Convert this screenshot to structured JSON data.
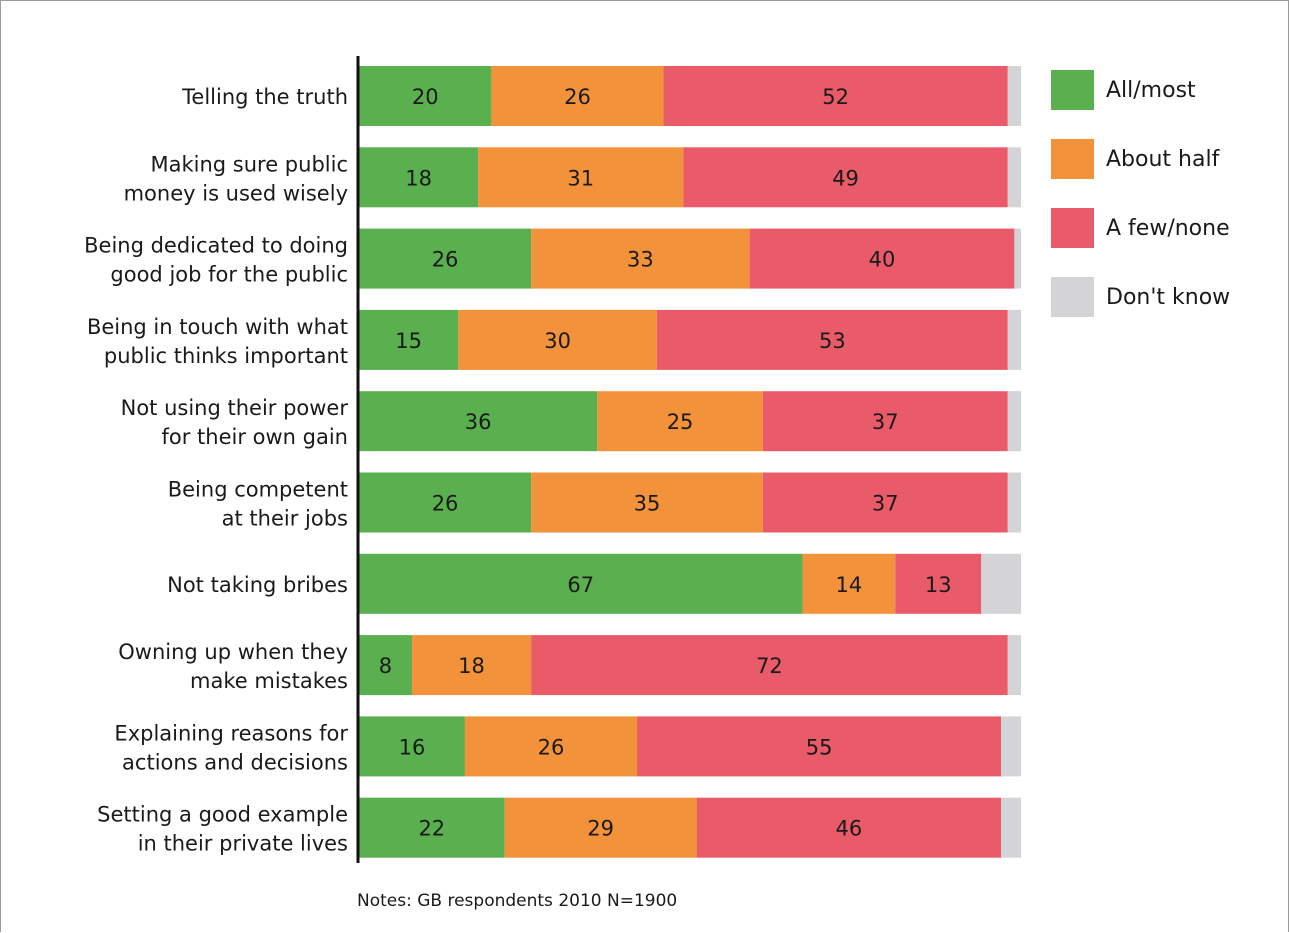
{
  "chart_data": {
    "type": "bar",
    "orientation": "horizontal",
    "stacked": true,
    "categories": [
      [
        "Telling the truth"
      ],
      [
        "Making sure public",
        "money is used wisely"
      ],
      [
        "Being dedicated to doing",
        "good job for the public"
      ],
      [
        "Being in touch with what",
        "public thinks important"
      ],
      [
        "Not using their power",
        "for their own gain"
      ],
      [
        "Being competent",
        "at their jobs"
      ],
      [
        "Not taking bribes"
      ],
      [
        "Owning up when they",
        "make mistakes"
      ],
      [
        "Explaining reasons for",
        "actions and decisions"
      ],
      [
        "Setting a good example",
        "in their private lives"
      ]
    ],
    "series": [
      {
        "name": "All/most",
        "color": "#5aaf4e",
        "values": [
          20,
          18,
          26,
          15,
          36,
          26,
          67,
          8,
          16,
          22
        ]
      },
      {
        "name": "About half",
        "color": "#f2923a",
        "values": [
          26,
          31,
          33,
          30,
          25,
          35,
          14,
          18,
          26,
          29
        ]
      },
      {
        "name": "A few/none",
        "color": "#e95b69",
        "values": [
          52,
          49,
          40,
          53,
          37,
          37,
          13,
          72,
          55,
          46
        ]
      },
      {
        "name": "Don't know",
        "color": "#d4d4d6",
        "values": [
          2,
          2,
          1,
          2,
          2,
          2,
          6,
          2,
          3,
          3
        ]
      }
    ],
    "show_value_labels_for": [
      "All/most",
      "About half",
      "A few/none"
    ],
    "xlim": [
      0,
      100
    ],
    "grid": false,
    "legend_position": "right",
    "note": "Notes: GB respondents 2010 N=1900"
  }
}
